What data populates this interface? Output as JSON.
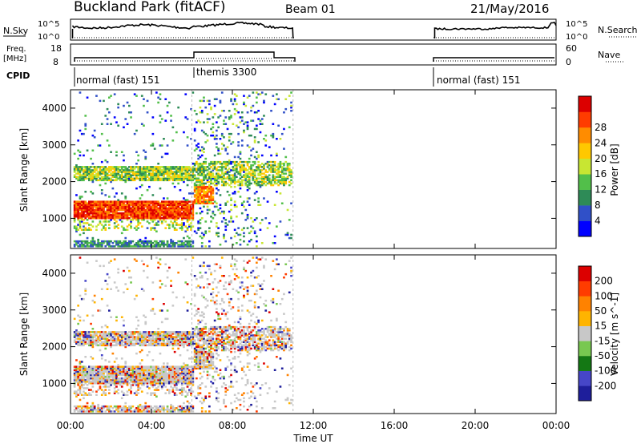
{
  "header": {
    "site": "Buckland Park (fitACF)",
    "beam": "Beam 01",
    "date": "21/May/2016"
  },
  "top_panels": {
    "nsky_label": "N.Sky",
    "nsky_ticks": [
      "10^5",
      "10^0"
    ],
    "nsearch_label": "N.Search",
    "nsearch_ticks": [
      "10^5",
      "10^0"
    ],
    "freq_label": "Freq.",
    "freq_unit": "[MHz]",
    "freq_ticks": [
      "18",
      "8"
    ],
    "nave_label": "Nave",
    "nave_ticks": [
      "60",
      "0"
    ],
    "cpid_label": "CPID",
    "cpid_segments": [
      {
        "label": "normal (fast) 151",
        "start": 0.0
      },
      {
        "label": "themis 3300",
        "start": 6.0
      },
      {
        "label": "normal (fast) 151",
        "start": 18.0
      }
    ]
  },
  "chart_data": [
    {
      "type": "heatmap",
      "name": "power",
      "ylabel": "Slant Range [km]",
      "ylim": [
        180,
        4500
      ],
      "yticks": [
        1000,
        2000,
        3000,
        4000
      ],
      "xlim": [
        0,
        24
      ],
      "colorbar": {
        "label": "Power [dB]",
        "ticks": [
          4,
          8,
          12,
          16,
          20,
          24,
          28
        ],
        "colors": [
          "#0000ff",
          "#3050c8",
          "#2e8b57",
          "#52bf4a",
          "#c8e632",
          "#ffc800",
          "#ff8c00",
          "#ff3c00",
          "#dc0000"
        ]
      }
    },
    {
      "type": "heatmap",
      "name": "velocity",
      "ylabel": "Slant Range [km]",
      "ylim": [
        180,
        4500
      ],
      "yticks": [
        1000,
        2000,
        3000,
        4000
      ],
      "xlim": [
        0,
        24
      ],
      "xticks": [
        "00:00",
        "04:00",
        "08:00",
        "12:00",
        "16:00",
        "20:00",
        "00:00"
      ],
      "xlabel": "Time UT",
      "colorbar": {
        "label": "Velocity [m s^-1]",
        "ticks": [
          "200",
          "100",
          "50",
          "15",
          "-15",
          "-50",
          "-100",
          "-200"
        ],
        "colors": [
          "#1e1e9b",
          "#4646c8",
          "#147814",
          "#78c850",
          "#c8c8c8",
          "#ffb400",
          "#ff8200",
          "#ff3c00",
          "#dc0000"
        ]
      }
    }
  ]
}
